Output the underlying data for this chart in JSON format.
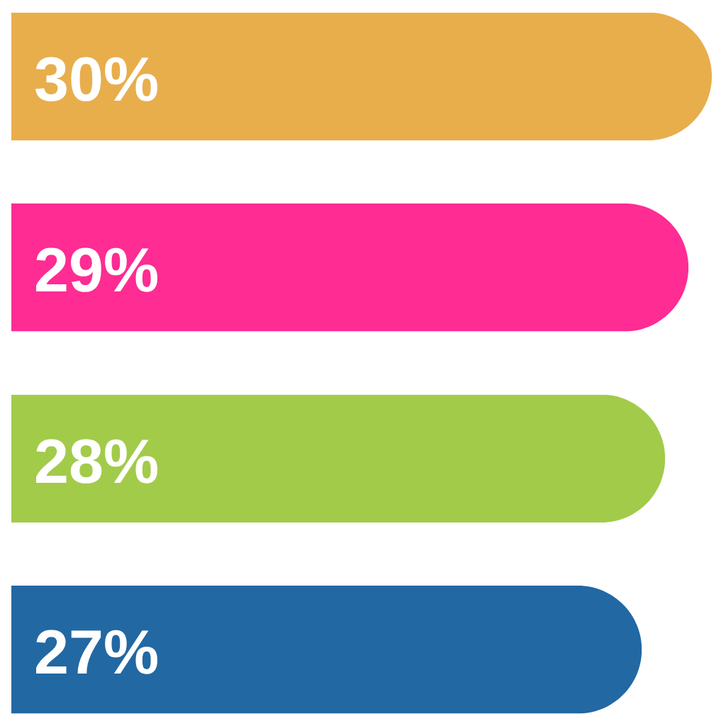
{
  "chart_data": {
    "type": "bar",
    "orientation": "horizontal",
    "categories": [
      null,
      null,
      null,
      null
    ],
    "values": [
      30,
      29,
      28,
      27
    ],
    "value_labels": [
      "30%",
      "29%",
      "28%",
      "27%"
    ],
    "colors": [
      "#e8ae4c",
      "#fe2c93",
      "#a2cb4a",
      "#2268a3"
    ]
  }
}
